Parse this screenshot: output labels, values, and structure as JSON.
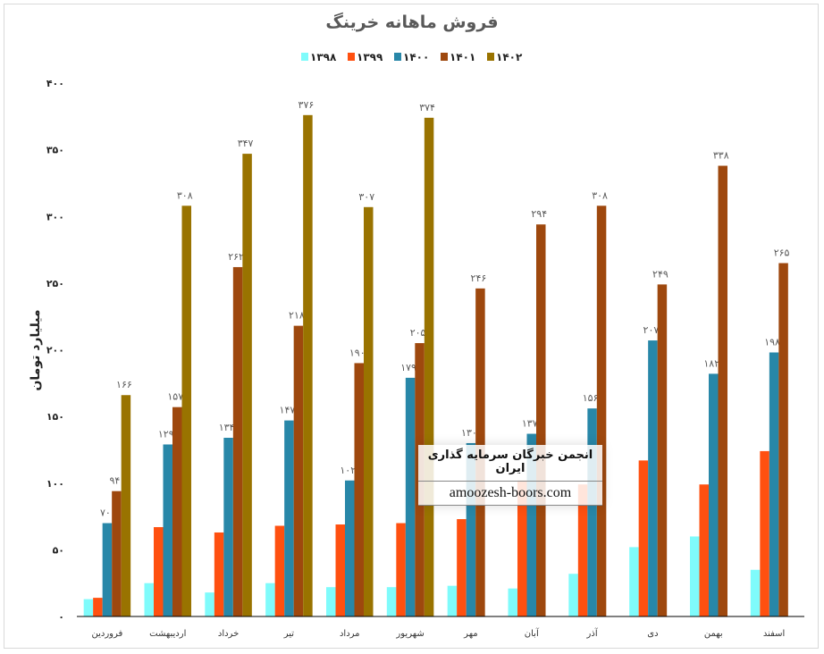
{
  "chart_data": {
    "type": "bar",
    "title": "فروش ماهانه خرینگ",
    "ylabel": "میلیارد تومان",
    "xlabel": "",
    "ylim": [
      0,
      400
    ],
    "yticks": [
      0,
      50,
      100,
      150,
      200,
      250,
      300,
      350,
      400
    ],
    "grid": false,
    "legend_position": "top",
    "categories": [
      "فروردین",
      "اردیبهشت",
      "خرداد",
      "تیر",
      "مرداد",
      "شهریور",
      "مهر",
      "آبان",
      "آذر",
      "دی",
      "بهمن",
      "اسفند"
    ],
    "series": [
      {
        "name": "۱۳۹۸",
        "color": "#7ffbfb",
        "labels": false,
        "values": [
          13,
          25,
          18,
          25,
          22,
          22,
          23,
          21,
          32,
          52,
          60,
          35
        ]
      },
      {
        "name": "۱۳۹۹",
        "color": "#ff5010",
        "labels": false,
        "values": [
          14,
          67,
          63,
          68,
          69,
          70,
          73,
          102,
          99,
          117,
          99,
          124
        ]
      },
      {
        "name": "۱۴۰۰",
        "color": "#2887a8",
        "labels": true,
        "values": [
          70,
          129,
          134,
          147,
          102,
          179,
          130,
          137,
          156,
          207,
          182,
          198
        ]
      },
      {
        "name": "۱۴۰۱",
        "color": "#9e480e",
        "labels": true,
        "values": [
          94,
          157,
          262,
          218,
          190,
          205,
          246,
          294,
          308,
          249,
          338,
          265
        ]
      },
      {
        "name": "۱۴۰۲",
        "color": "#997300",
        "labels": true,
        "values": [
          166,
          308,
          347,
          376,
          307,
          374,
          null,
          null,
          null,
          null,
          null,
          null
        ]
      }
    ]
  },
  "watermark": {
    "line1": "انجمن خبرگان سرمایه گذاری ایران",
    "line2": "amoozesh-boors.com"
  }
}
